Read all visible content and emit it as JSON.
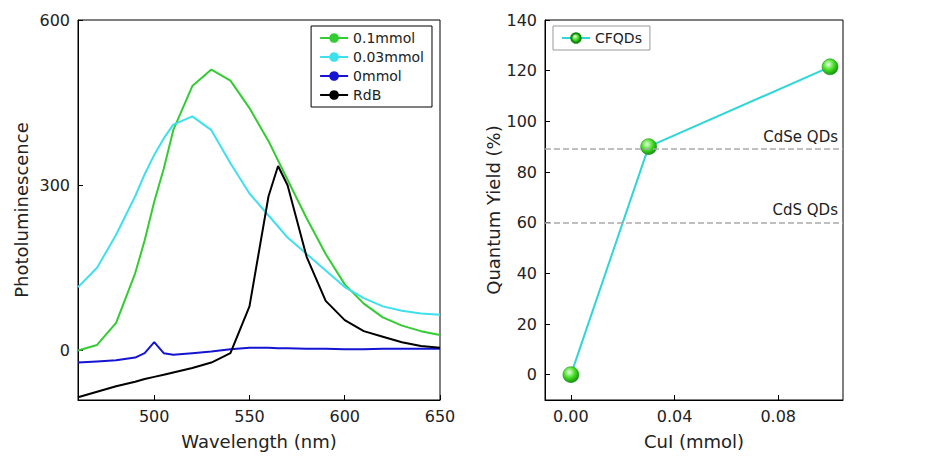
{
  "chart_data": [
    {
      "type": "line",
      "xlabel": "Wavelength (nm)",
      "ylabel": "Photoluminescence",
      "x": [
        460,
        470,
        480,
        490,
        495,
        500,
        505,
        510,
        520,
        530,
        540,
        550,
        560,
        565,
        570,
        580,
        590,
        600,
        610,
        620,
        630,
        640,
        650
      ],
      "series": [
        {
          "name": "0.1mmol",
          "color": "#33cc33",
          "values": [
            0,
            10,
            50,
            140,
            200,
            270,
            330,
            400,
            480,
            510,
            490,
            440,
            380,
            345,
            310,
            240,
            175,
            120,
            85,
            60,
            45,
            35,
            28
          ]
        },
        {
          "name": "0.03mmol",
          "color": "#3ee0ee",
          "values": [
            115,
            150,
            210,
            280,
            320,
            355,
            385,
            410,
            425,
            400,
            340,
            285,
            245,
            225,
            205,
            175,
            145,
            115,
            95,
            80,
            72,
            67,
            65
          ]
        },
        {
          "name": "0mmol",
          "color": "#1414d2",
          "values": [
            -22,
            -20,
            -18,
            -13,
            -5,
            15,
            -5,
            -8,
            -5,
            -2,
            2,
            5,
            5,
            4,
            4,
            3,
            3,
            2,
            2,
            3,
            3,
            3,
            3
          ]
        },
        {
          "name": "RdB",
          "color": "#000000",
          "values": [
            -85,
            -75,
            -65,
            -57,
            -52,
            -48,
            -44,
            -40,
            -32,
            -22,
            -5,
            80,
            280,
            335,
            300,
            170,
            90,
            55,
            35,
            25,
            15,
            8,
            5
          ]
        }
      ],
      "xlim": [
        460,
        650
      ],
      "xticks": [
        500,
        550,
        600,
        650
      ],
      "ylim": [
        -90,
        600
      ],
      "yticks": [
        0,
        300,
        600
      ],
      "legend": "upper right",
      "line_style": "solid",
      "grid": false
    },
    {
      "type": "line",
      "xlabel": "CuI (mmol)",
      "ylabel": "Quantum Yield (%)",
      "x": [
        0,
        0.03,
        0.1
      ],
      "series": [
        {
          "name": "CFQDs",
          "color": "#2fd6d6",
          "marker": "circle",
          "values": [
            0,
            90,
            121.5
          ]
        }
      ],
      "xlim": [
        -0.01,
        0.105
      ],
      "xticks": [
        {
          "value": 0,
          "label": "0.00"
        },
        {
          "value": 0.04,
          "label": "0.04"
        },
        {
          "value": 0.08,
          "label": "0.08"
        }
      ],
      "ylim": [
        -10,
        140
      ],
      "yticks": [
        0,
        20,
        40,
        60,
        80,
        100,
        120,
        140
      ],
      "reference_lines": [
        {
          "value": 89,
          "label": "CdSe QDs"
        },
        {
          "value": 60,
          "label": "CdS QDs"
        }
      ],
      "legend": "upper left",
      "line_style": "solid",
      "grid": false
    }
  ]
}
